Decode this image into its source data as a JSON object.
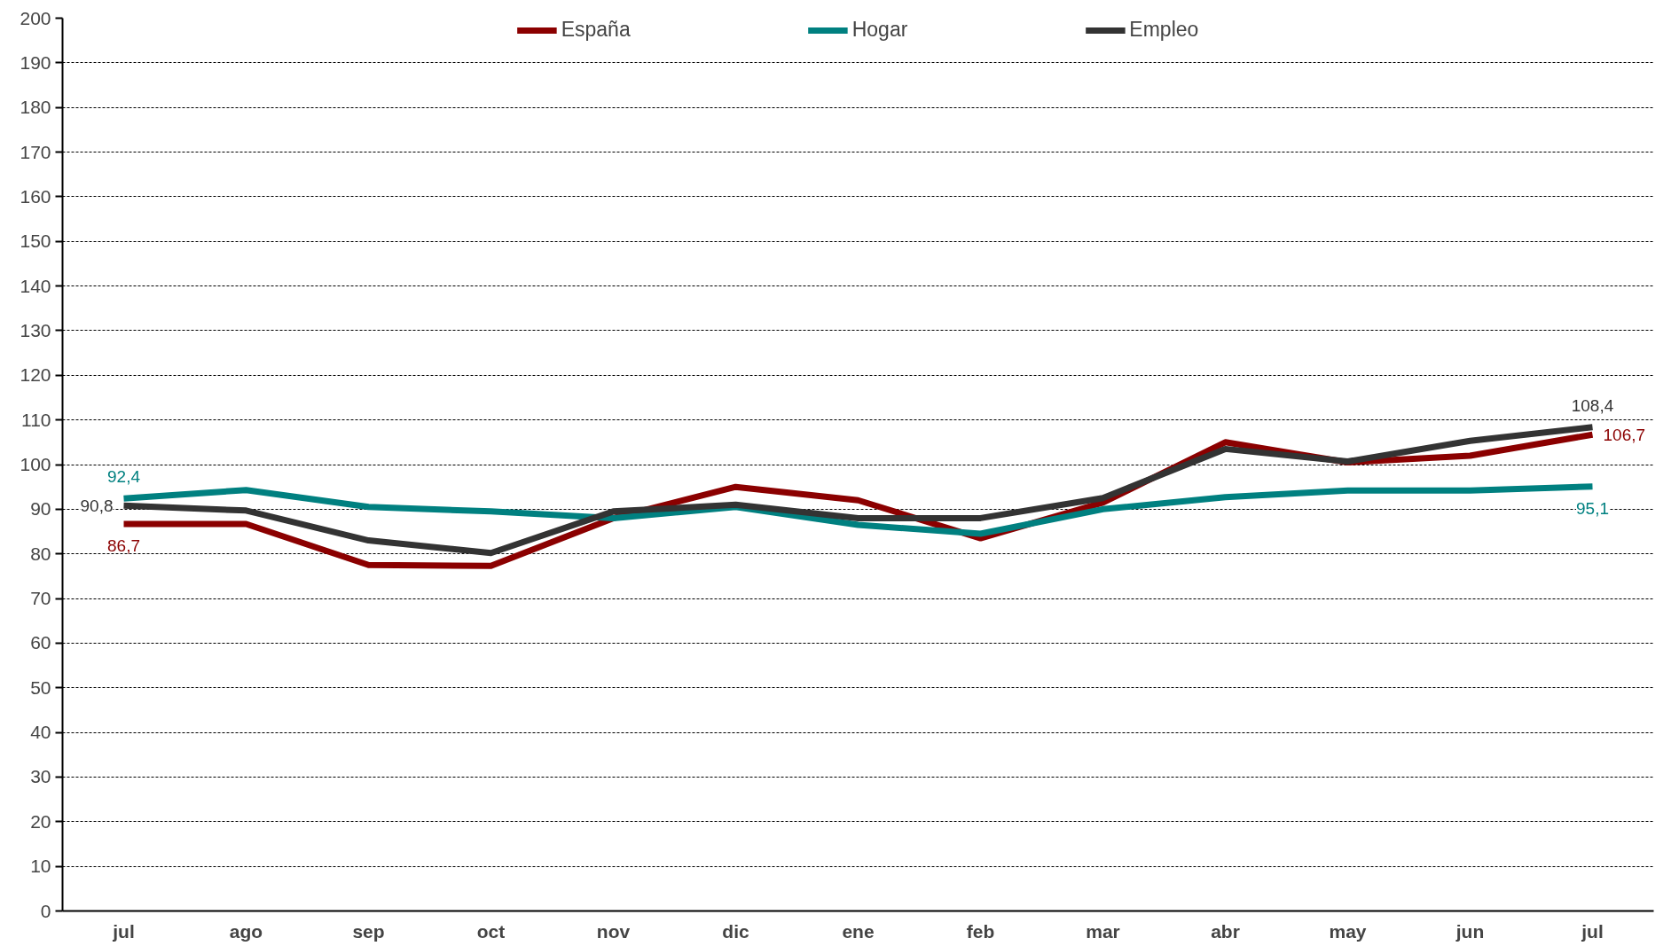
{
  "chart_data": {
    "type": "line",
    "categories": [
      "jul",
      "ago",
      "sep",
      "oct",
      "nov",
      "dic",
      "ene",
      "feb",
      "mar",
      "abr",
      "may",
      "jun",
      "jul"
    ],
    "series": [
      {
        "name": "España",
        "color": "#8b0000",
        "values": [
          86.7,
          86.7,
          77.5,
          77.3,
          88,
          95,
          92,
          83.5,
          91.5,
          105,
          100.5,
          102,
          106.7
        ],
        "value_labels": [
          "86,7",
          null,
          null,
          null,
          null,
          null,
          null,
          null,
          null,
          null,
          null,
          null,
          "106,7"
        ]
      },
      {
        "name": "Hogar",
        "color": "#008080",
        "values": [
          92.4,
          94.3,
          90.5,
          89.5,
          88,
          90.5,
          86.5,
          84.5,
          90,
          92.7,
          94.2,
          94.2,
          95.1
        ],
        "value_labels": [
          "92,4",
          null,
          null,
          null,
          null,
          null,
          null,
          null,
          null,
          null,
          null,
          null,
          "95,1"
        ]
      },
      {
        "name": "Empleo",
        "color": "#333333",
        "values": [
          90.8,
          89.7,
          83,
          80.2,
          89.5,
          91,
          88,
          88,
          92.5,
          103.5,
          100.7,
          105.3,
          108.4
        ],
        "value_labels": [
          "90,8",
          null,
          null,
          null,
          null,
          null,
          null,
          null,
          null,
          null,
          null,
          null,
          "108,4"
        ]
      }
    ],
    "ylim": [
      0,
      200
    ],
    "yticks": [
      0,
      10,
      20,
      30,
      40,
      50,
      60,
      70,
      80,
      90,
      100,
      110,
      120,
      130,
      140,
      150,
      160,
      170,
      180,
      190,
      200
    ],
    "grid": "y",
    "legend": "top",
    "marker": "none",
    "line_style": "solid"
  }
}
